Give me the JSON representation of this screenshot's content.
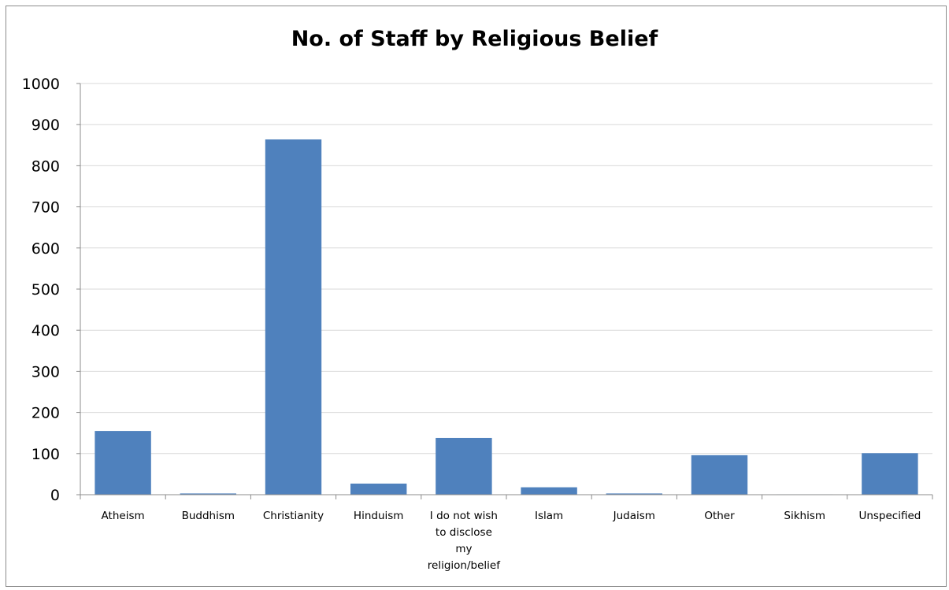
{
  "chart_data": {
    "type": "bar",
    "title": "No. of Staff by Religious Belief",
    "xlabel": "",
    "ylabel": "",
    "ylim": [
      0,
      1000
    ],
    "yticks": [
      0,
      100,
      200,
      300,
      400,
      500,
      600,
      700,
      800,
      900,
      1000
    ],
    "grid": true,
    "legend": "none",
    "categories": [
      "Atheism",
      "Buddhism",
      "Christianity",
      "Hinduism",
      "I do not wish to disclose my religion/belief",
      "Islam",
      "Judaism",
      "Other",
      "Sikhism",
      "Unspecified"
    ],
    "category_label_lines": [
      [
        "Atheism"
      ],
      [
        "Buddhism"
      ],
      [
        "Christianity"
      ],
      [
        "Hinduism"
      ],
      [
        "I do not wish",
        "to disclose",
        "my",
        "religion/belief"
      ],
      [
        "Islam"
      ],
      [
        "Judaism"
      ],
      [
        "Other"
      ],
      [
        "Sikhism"
      ],
      [
        "Unspecified"
      ]
    ],
    "values": [
      155,
      3,
      864,
      27,
      138,
      18,
      3,
      96,
      1,
      101
    ],
    "colors": {
      "bar": "#4f81bd",
      "gridline": "#d9d9d9",
      "axis": "#8c8c8c"
    }
  }
}
